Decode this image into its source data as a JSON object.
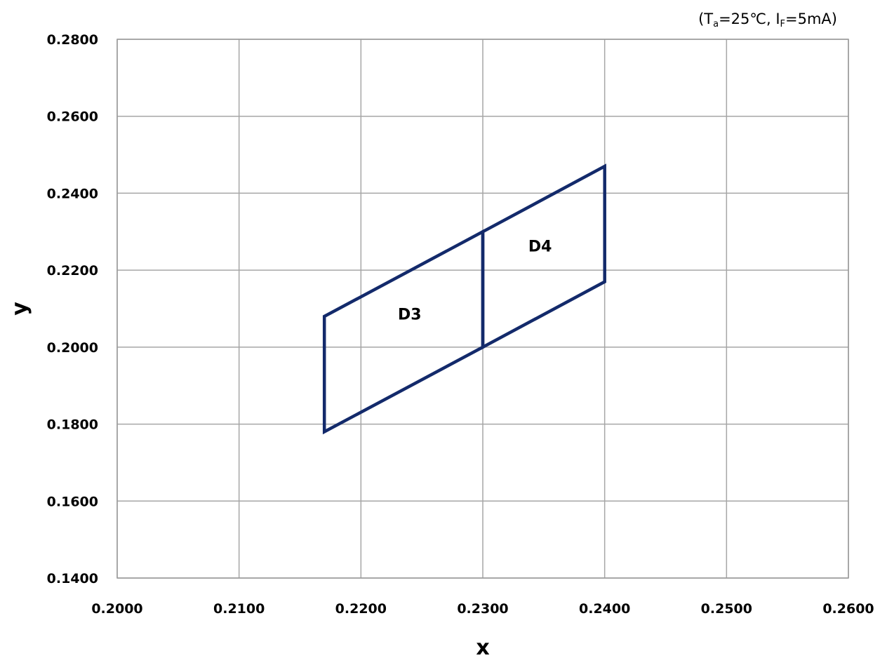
{
  "chart_data": {
    "type": "scatter",
    "title": "",
    "condition": {
      "open": "(",
      "ta_symbol": "T",
      "ta_sub": "a",
      "ta_value": "=25℃, ",
      "if_symbol": "I",
      "if_sub": "F",
      "if_value": "=5mA)"
    },
    "xlabel": "x",
    "ylabel": "y",
    "xlim": [
      0.2,
      0.26
    ],
    "ylim": [
      0.14,
      0.28
    ],
    "xticks": [
      0.2,
      0.21,
      0.22,
      0.23,
      0.24,
      0.25,
      0.26
    ],
    "yticks": [
      0.14,
      0.16,
      0.18,
      0.2,
      0.22,
      0.24,
      0.26,
      0.28
    ],
    "xtick_labels": [
      "0.2000",
      "0.2100",
      "0.2200",
      "0.2300",
      "0.2400",
      "0.2500",
      "0.2600"
    ],
    "ytick_labels": [
      "0.1400",
      "0.1600",
      "0.1800",
      "0.2000",
      "0.2200",
      "0.2400",
      "0.2600",
      "0.2800"
    ],
    "grid": true,
    "line_color": "#132a6b",
    "regions": [
      {
        "name": "D3",
        "points": [
          [
            0.217,
            0.178
          ],
          [
            0.217,
            0.208
          ],
          [
            0.23,
            0.23
          ],
          [
            0.23,
            0.2
          ]
        ],
        "label_at": [
          0.224,
          0.2072
        ]
      },
      {
        "name": "D4",
        "points": [
          [
            0.23,
            0.2
          ],
          [
            0.23,
            0.23
          ],
          [
            0.24,
            0.247
          ],
          [
            0.24,
            0.217
          ]
        ],
        "label_at": [
          0.2347,
          0.2249
        ]
      }
    ]
  }
}
